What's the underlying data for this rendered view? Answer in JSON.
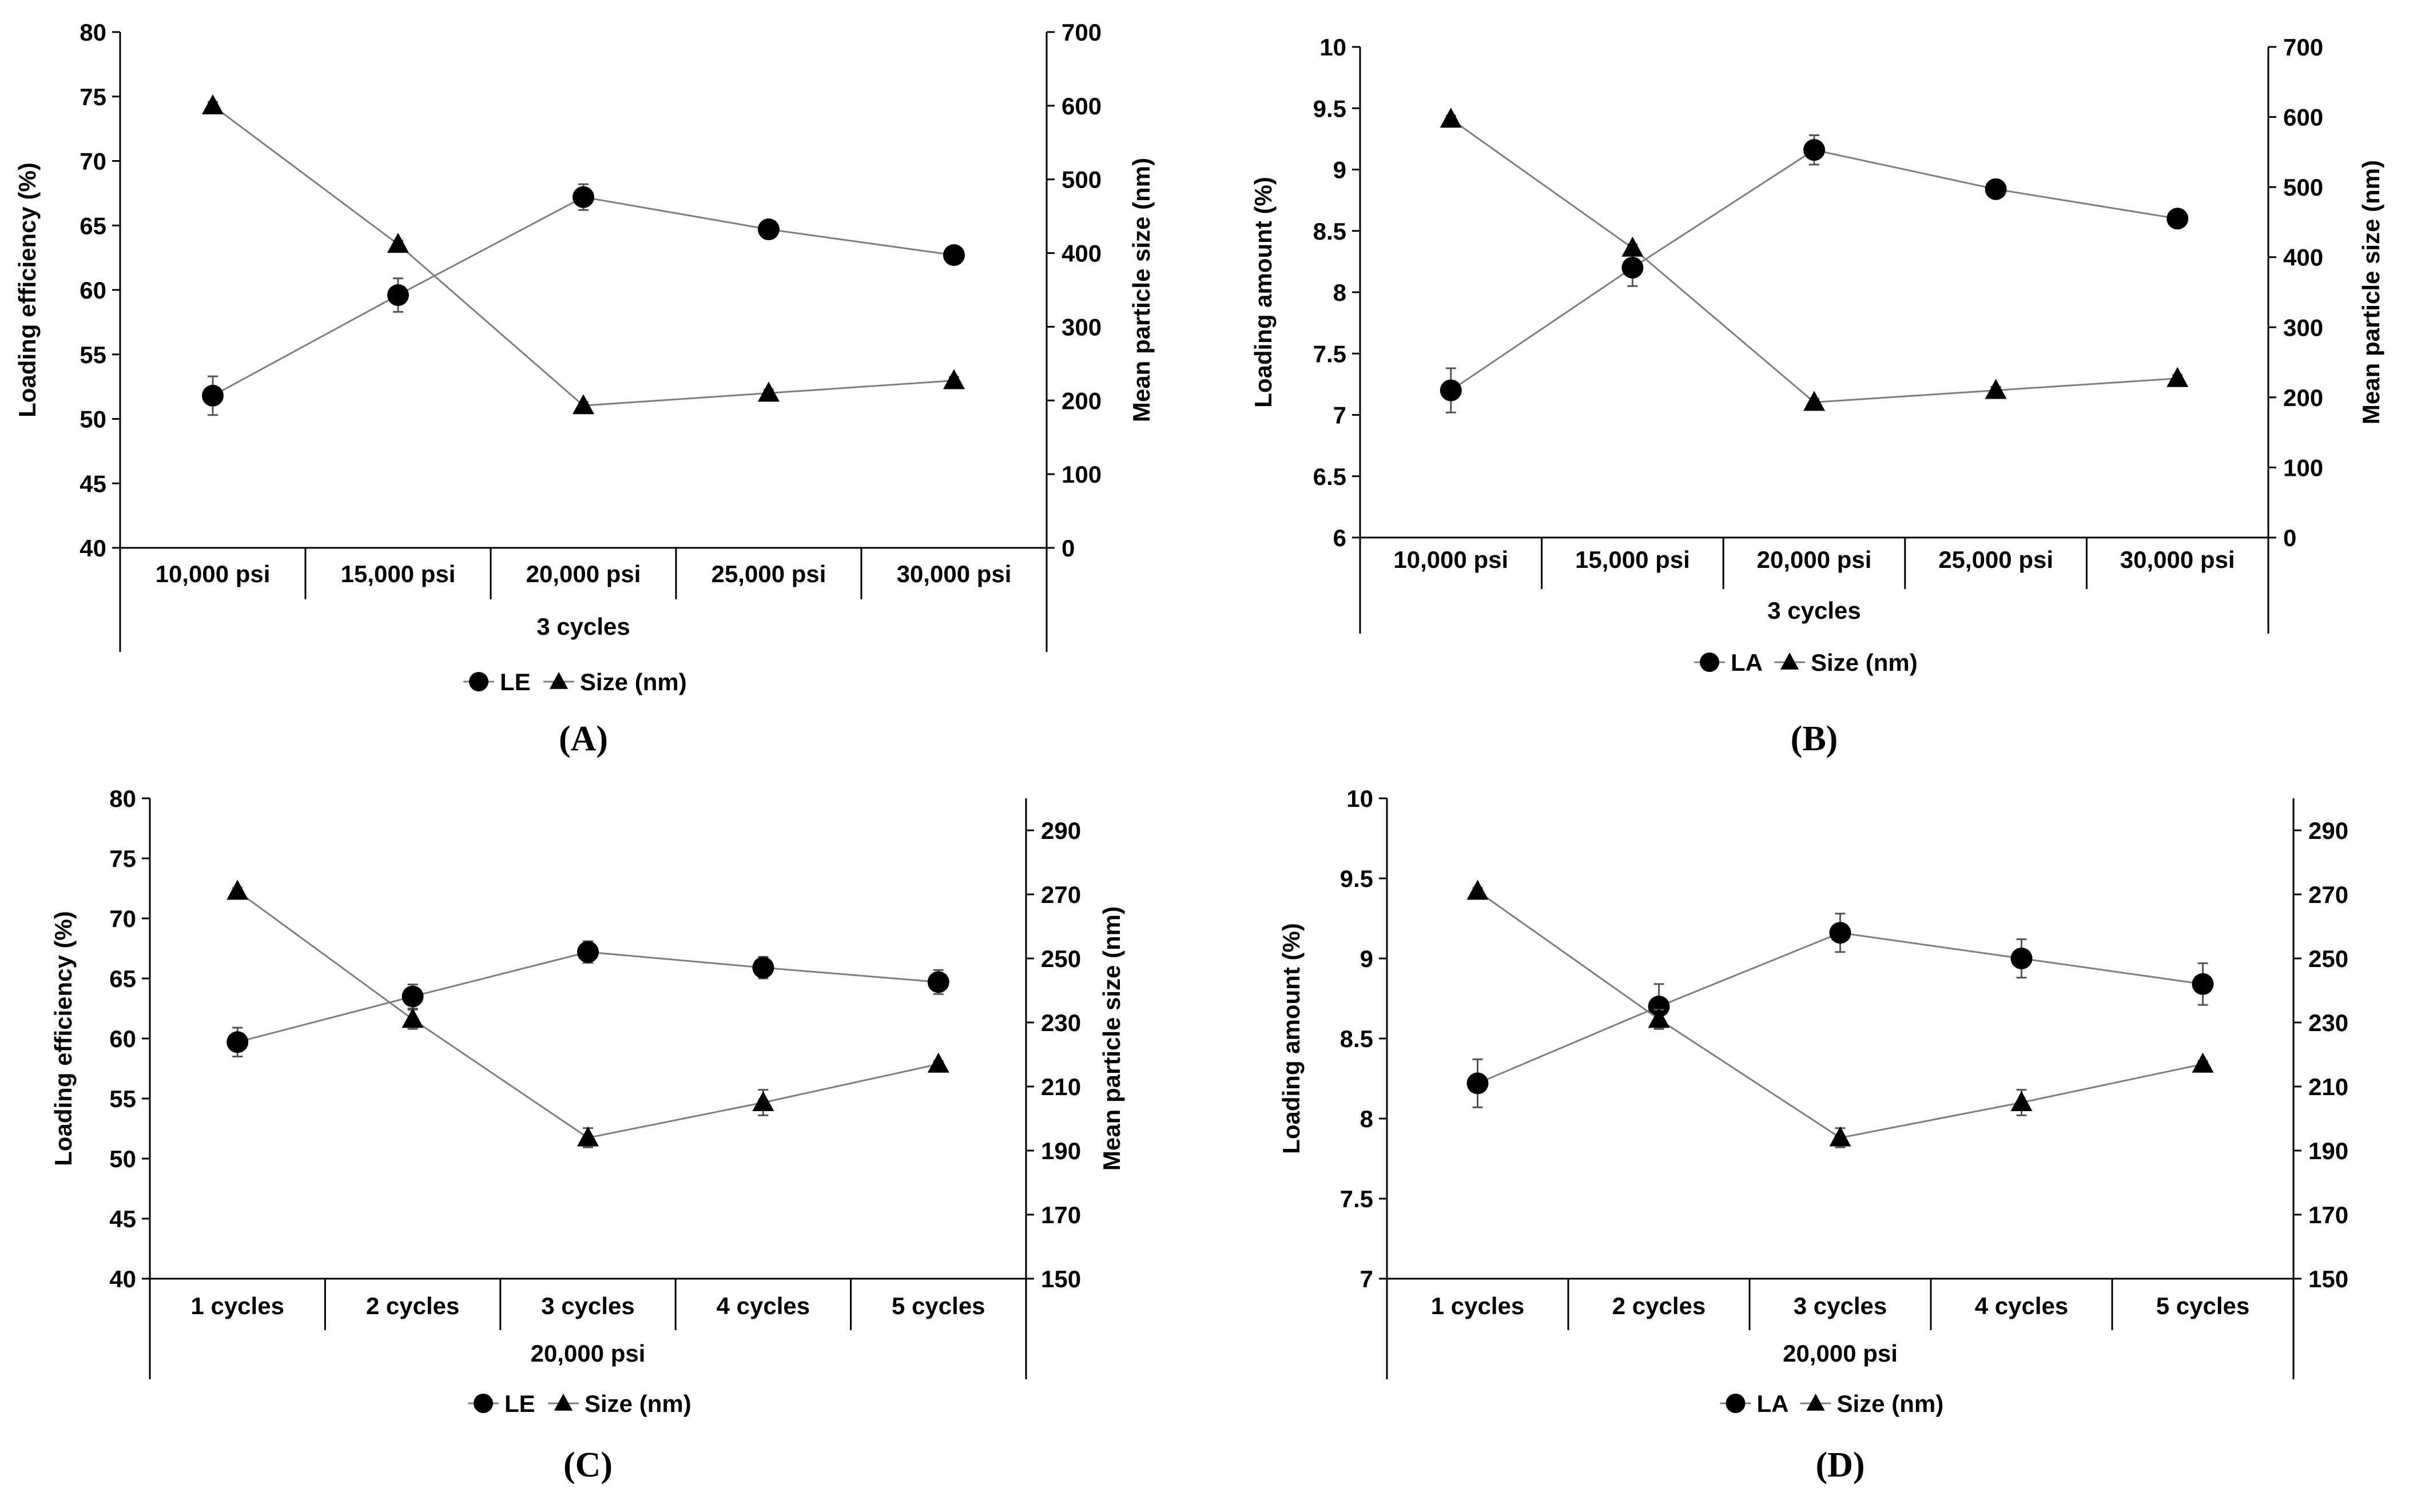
{
  "colors": {
    "line": "#7f7f7f",
    "marker": "#000000",
    "axis": "#000000",
    "background": "#ffffff"
  },
  "chart_data": [
    {
      "panel_label": "(A)",
      "type": "line",
      "categories": [
        "10,000 psi",
        "15,000 psi",
        "20,000 psi",
        "25,000 psi",
        "30,000 psi"
      ],
      "group_label": "3 cycles",
      "ylabel_left": "Loading efficiency (%)",
      "ylabel_right": "Mean particle size (nm)",
      "ylim_left": [
        40,
        80
      ],
      "yticks_left": [
        "40",
        "45",
        "50",
        "55",
        "60",
        "65",
        "70",
        "75",
        "80"
      ],
      "ylim_right": [
        0,
        700
      ],
      "yticks_right": [
        "0",
        "100",
        "200",
        "300",
        "400",
        "500",
        "600",
        "700"
      ],
      "series": [
        {
          "name": "LE",
          "marker": "circle",
          "axis": "left",
          "values": [
            51.8,
            59.6,
            67.2,
            64.7,
            62.7
          ],
          "errors": [
            1.5,
            1.3,
            1.0,
            0.5,
            0.5
          ]
        },
        {
          "name": "Size (nm)",
          "marker": "triangle",
          "axis": "right",
          "values": [
            600,
            412,
            193,
            210,
            227
          ],
          "errors": [
            5,
            5,
            5,
            5,
            5
          ]
        }
      ],
      "legend": [
        "LE",
        "Size (nm)"
      ],
      "legend_position": "bottom-center"
    },
    {
      "panel_label": "(B)",
      "type": "line",
      "categories": [
        "10,000 psi",
        "15,000 psi",
        "20,000 psi",
        "25,000 psi",
        "30,000 psi"
      ],
      "group_label": "3 cycles",
      "ylabel_left": "Loading amount (%)",
      "ylabel_right": "Mean particle size (nm)",
      "ylim_left": [
        6,
        10
      ],
      "yticks_left": [
        "6",
        "6.5",
        "7",
        "7.5",
        "8",
        "8.5",
        "9",
        "9.5",
        "10"
      ],
      "ylim_right": [
        0,
        700
      ],
      "yticks_right": [
        "0",
        "100",
        "200",
        "300",
        "400",
        "500",
        "600",
        "700"
      ],
      "series": [
        {
          "name": "LA",
          "marker": "circle",
          "axis": "left",
          "values": [
            7.2,
            8.2,
            9.16,
            8.84,
            8.6
          ],
          "errors": [
            0.18,
            0.15,
            0.12,
            0.05,
            0.05
          ]
        },
        {
          "name": "Size (nm)",
          "marker": "triangle",
          "axis": "right",
          "values": [
            597,
            413,
            193,
            210,
            227
          ],
          "errors": [
            5,
            5,
            5,
            5,
            5
          ]
        }
      ],
      "legend": [
        "LA",
        "Size (nm)"
      ],
      "legend_position": "bottom-center"
    },
    {
      "panel_label": "(C)",
      "type": "line",
      "categories": [
        "1 cycles",
        "2 cycles",
        "3 cycles",
        "4 cycles",
        "5 cycles"
      ],
      "group_label": "20,000 psi",
      "ylabel_left": "Loading efficiency (%)",
      "ylabel_right": "Mean particle size (nm)",
      "ylim_left": [
        40,
        80
      ],
      "yticks_left": [
        "40",
        "45",
        "50",
        "55",
        "60",
        "65",
        "70",
        "75",
        "80"
      ],
      "ylim_right": [
        150,
        300
      ],
      "yticks_right": [
        "150",
        "170",
        "190",
        "210",
        "230",
        "250",
        "270",
        "290"
      ],
      "series": [
        {
          "name": "LE",
          "marker": "circle",
          "axis": "left",
          "values": [
            59.7,
            63.5,
            67.2,
            65.9,
            64.7
          ],
          "errors": [
            1.2,
            1.0,
            0.9,
            0.9,
            1.0
          ]
        },
        {
          "name": "Size (nm)",
          "marker": "triangle",
          "axis": "right",
          "values": [
            271,
            231,
            194,
            205,
            217
          ],
          "errors": [
            1,
            3,
            3,
            4,
            1
          ]
        }
      ],
      "legend": [
        "LE",
        "Size (nm)"
      ],
      "legend_position": "bottom-center"
    },
    {
      "panel_label": "(D)",
      "type": "line",
      "categories": [
        "1 cycles",
        "2 cycles",
        "3 cycles",
        "4 cycles",
        "5 cycles"
      ],
      "group_label": "20,000 psi",
      "ylabel_left": "Loading amount (%)",
      "ylabel_right": "",
      "ylim_left": [
        7,
        10
      ],
      "yticks_left": [
        "7",
        "7.5",
        "8",
        "8.5",
        "9",
        "9.5",
        "10"
      ],
      "ylim_right": [
        150,
        300
      ],
      "yticks_right": [
        "150",
        "170",
        "190",
        "210",
        "230",
        "250",
        "270",
        "290"
      ],
      "series": [
        {
          "name": "LA",
          "marker": "circle",
          "axis": "left",
          "values": [
            8.22,
            8.7,
            9.16,
            9.0,
            8.84
          ],
          "errors": [
            0.15,
            0.14,
            0.12,
            0.12,
            0.13
          ]
        },
        {
          "name": "Size (nm)",
          "marker": "triangle",
          "axis": "right",
          "values": [
            271,
            231,
            194,
            205,
            217
          ],
          "errors": [
            1,
            3,
            3,
            4,
            1
          ]
        }
      ],
      "legend": [
        "LA",
        "Size (nm)"
      ],
      "legend_position": "bottom-center"
    }
  ]
}
